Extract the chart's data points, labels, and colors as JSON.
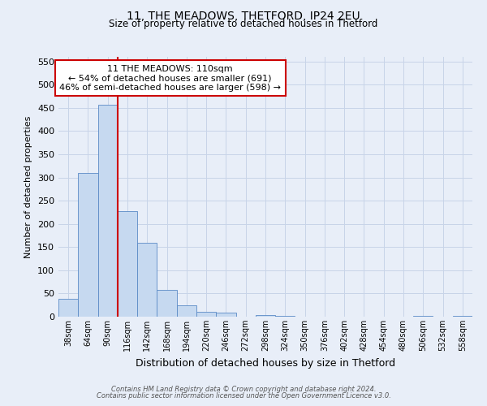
{
  "title": "11, THE MEADOWS, THETFORD, IP24 2EU",
  "subtitle": "Size of property relative to detached houses in Thetford",
  "xlabel": "Distribution of detached houses by size in Thetford",
  "ylabel": "Number of detached properties",
  "bin_labels": [
    "38sqm",
    "64sqm",
    "90sqm",
    "116sqm",
    "142sqm",
    "168sqm",
    "194sqm",
    "220sqm",
    "246sqm",
    "272sqm",
    "298sqm",
    "324sqm",
    "350sqm",
    "376sqm",
    "402sqm",
    "428sqm",
    "454sqm",
    "480sqm",
    "506sqm",
    "532sqm",
    "558sqm"
  ],
  "bar_heights": [
    38,
    310,
    457,
    228,
    160,
    57,
    25,
    10,
    8,
    0,
    4,
    2,
    0,
    0,
    0,
    0,
    0,
    0,
    2,
    0,
    2
  ],
  "bar_color": "#c6d9f0",
  "bar_edge_color": "#5a8ac6",
  "vline_color": "#cc0000",
  "annotation_title": "11 THE MEADOWS: 110sqm",
  "annotation_line1": "← 54% of detached houses are smaller (691)",
  "annotation_line2": "46% of semi-detached houses are larger (598) →",
  "annotation_box_color": "#ffffff",
  "annotation_box_edge_color": "#cc0000",
  "grid_color": "#c8d4e8",
  "bg_color": "#e8eef8",
  "footer1": "Contains HM Land Registry data © Crown copyright and database right 2024.",
  "footer2": "Contains public sector information licensed under the Open Government Licence v3.0."
}
